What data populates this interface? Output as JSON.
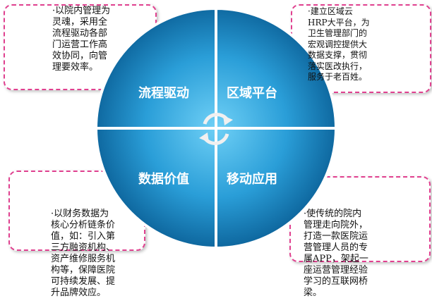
{
  "quadrants": {
    "top_left": "流程驱动",
    "top_right": "区域平台",
    "bottom_left": "数据价值",
    "bottom_right": "移动应用"
  },
  "notes": {
    "top_left": "·以院内管理为\n灵魂，采用全\n流程驱动各部\n门运营工作高\n效协同，向管\n理要效率。",
    "top_right": "·建立区域云\nHRP大平台，为\n卫生管理部门的\n宏观调控提供大\n数据支撑，贯彻\n落实医改执行，\n服务于老百姓。",
    "bottom_left": "·以财务数据为\n核心分析链条价\n值，如：引入第\n三方融资机构、\n资产维修服务机\n构等，保障医院\n可持续发展、提\n升品牌效应。",
    "bottom_right": "·使传统的院内\n管理走向院外，\n打造一款医院运\n营管理人员的专\n属APP，架起一\n座运营管理经验\n学习的互联网桥\n梁。"
  },
  "colors": {
    "border": "#e0408f",
    "circle_light": "#5cc6f2",
    "circle_dark": "#0a5f96"
  }
}
